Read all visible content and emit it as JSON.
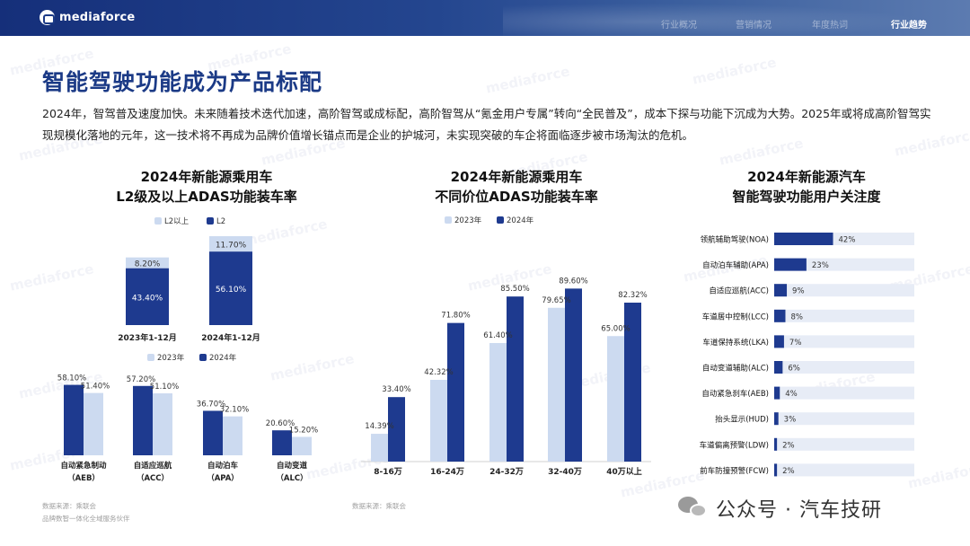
{
  "header": {
    "brand": "mediaforce",
    "nav": [
      "行业概况",
      "营销情况",
      "年度热词",
      "行业趋势"
    ],
    "nav_active": 3
  },
  "watermark_text": "mediaforce",
  "title": "智能驾驶功能成为产品标配",
  "intro": "2024年，智驾普及速度加快。未来随着技术迭代加速，高阶智驾或成标配，高阶智驾从“氪金用户专属”转向“全民普及”，成本下探与功能下沉成为大势。2025年或将成高阶智驾实现规模化落地的元年，这一技术将不再成为品牌价值增长锚点而是企业的护城河，未实现突破的车企将面临逐步被市场淘汰的危机。",
  "colors": {
    "dark": "#1e3a8f",
    "light": "#ccdaf0",
    "track": "#e7ecf6",
    "brand": "#1b3a86"
  },
  "chart1": {
    "title1": "2024年新能源乘用车",
    "title2": "L2级及以上ADAS功能装车率"
  },
  "chart2": {
    "title1": "2024年新能源乘用车",
    "title2": "不同价位ADAS功能装车率"
  },
  "chart3": {
    "title1": "2024年新能源汽车",
    "title2": "智能驾驶功能用户关注度"
  },
  "sources": {
    "left1": "数据来源：乘联会",
    "left2": "品牌数智一体化全域服务伙伴",
    "mid": "数据来源：乘联会"
  },
  "footer": {
    "wechat": "公众号 · 汽车技研"
  },
  "chart_data": [
    {
      "type": "bar",
      "stacked": true,
      "categories": [
        "2023年1-12月",
        "2024年1-12月"
      ],
      "series": [
        {
          "name": "L2以上",
          "values": [
            8.2,
            11.7
          ],
          "labels": [
            "8.20%",
            "11.70%"
          ]
        },
        {
          "name": "L2",
          "values": [
            43.4,
            56.1
          ],
          "labels": [
            "43.40%",
            "56.10%"
          ]
        }
      ],
      "legend": "top-center"
    },
    {
      "type": "bar",
      "categories": [
        "自动紧急制动（AEB）",
        "自适应巡航（ACC）",
        "自动泊车（APA）",
        "自动变道（ALC）"
      ],
      "category_lines": [
        [
          "自动紧急制动",
          "（AEB）"
        ],
        [
          "自适应巡航",
          "（ACC）"
        ],
        [
          "自动泊车",
          "（APA）"
        ],
        [
          "自动变道",
          "（ALC）"
        ]
      ],
      "series": [
        {
          "name": "2023年",
          "values": [
            51.4,
            51.1,
            32.1,
            15.2
          ],
          "labels": [
            "51.40%",
            "51.10%",
            "32.10%",
            "15.20%"
          ]
        },
        {
          "name": "2024年",
          "values": [
            58.1,
            57.2,
            36.7,
            20.6
          ],
          "labels": [
            "58.10%",
            "57.20%",
            "36.70%",
            "20.60%"
          ]
        }
      ],
      "legend": "top-center"
    },
    {
      "type": "bar",
      "categories": [
        "8-16万",
        "16-24万",
        "24-32万",
        "32-40万",
        "40万以上"
      ],
      "series": [
        {
          "name": "2023年",
          "values": [
            14.39,
            42.32,
            61.4,
            79.65,
            65.0
          ],
          "labels": [
            "14.39%",
            "42.32%",
            "61.40%",
            "79.65%",
            "65.00%"
          ]
        },
        {
          "name": "2024年",
          "values": [
            33.4,
            71.8,
            85.5,
            89.6,
            82.32
          ],
          "labels": [
            "33.40%",
            "71.80%",
            "85.50%",
            "89.60%",
            "82.32%"
          ]
        }
      ],
      "grid": false,
      "legend": "top-center"
    },
    {
      "type": "bar",
      "orientation": "horizontal",
      "categories": [
        "领航辅助驾驶(NOA)",
        "自动泊车辅助(APA)",
        "自适应巡航(ACC)",
        "车道居中控制(LCC)",
        "车道保持系统(LKA)",
        "自动变道辅助(ALC)",
        "自动紧急刹车(AEB)",
        "抬头显示(HUD)",
        "车道偏离预警(LDW)",
        "前车防撞预警(FCW)"
      ],
      "values": [
        42,
        23,
        9,
        8,
        7,
        6,
        4,
        3,
        2,
        2
      ],
      "labels": [
        "42%",
        "23%",
        "9%",
        "8%",
        "7%",
        "6%",
        "4%",
        "3%",
        "2%",
        "2%"
      ],
      "xlim": [
        0,
        100
      ]
    }
  ]
}
